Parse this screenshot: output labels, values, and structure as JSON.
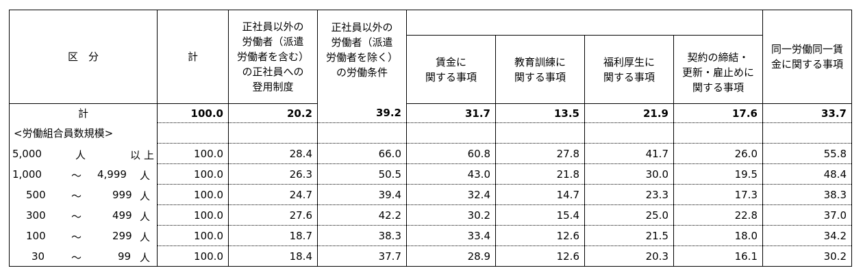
{
  "header": {
    "kubun": "区　分",
    "total": "計",
    "col_a": "正社員以外の\n労働者（派遣\n労働者を含む）\nの正社員への\n登用制度",
    "col_b": "正社員以外の\n労働者（派遣\n労働者を除く）\nの労働条件",
    "col_b1": "賃金に\n関する事項",
    "col_b2": "教育訓練に\n関する事項",
    "col_b3": "福利厚生に\n関する事項",
    "col_b4": "契約の締結・\n更新・雇止めに\n関する事項",
    "col_c": "同一労働同一賃\n金に関する事項"
  },
  "total_row": {
    "label": "計",
    "values": [
      "100.0",
      "20.2",
      "39.2",
      "31.7",
      "13.5",
      "21.9",
      "17.6",
      "33.7"
    ]
  },
  "group_label": "<労働組合員数規模>",
  "rows": [
    {
      "from": "5,000",
      "sep": "人",
      "to": "以",
      "unit": "上",
      "values": [
        "100.0",
        "28.4",
        "66.0",
        "60.8",
        "27.8",
        "41.7",
        "26.0",
        "55.8"
      ]
    },
    {
      "from": "1,000",
      "sep": "～",
      "to": "4,999",
      "unit": "人",
      "values": [
        "100.0",
        "26.3",
        "50.5",
        "43.0",
        "21.8",
        "30.0",
        "19.5",
        "48.4"
      ]
    },
    {
      "from": "500",
      "sep": "～",
      "to": "999",
      "unit": "人",
      "values": [
        "100.0",
        "24.7",
        "39.4",
        "32.4",
        "14.7",
        "23.3",
        "17.3",
        "38.3"
      ]
    },
    {
      "from": "300",
      "sep": "～",
      "to": "499",
      "unit": "人",
      "values": [
        "100.0",
        "27.6",
        "42.2",
        "30.2",
        "15.4",
        "25.0",
        "22.8",
        "37.0"
      ]
    },
    {
      "from": "100",
      "sep": "～",
      "to": "299",
      "unit": "人",
      "values": [
        "100.0",
        "18.7",
        "38.3",
        "33.4",
        "12.6",
        "21.5",
        "18.0",
        "34.2"
      ]
    },
    {
      "from": "30",
      "sep": "～",
      "to": "99",
      "unit": "人",
      "values": [
        "100.0",
        "18.4",
        "37.7",
        "28.9",
        "12.6",
        "20.3",
        "16.1",
        "30.2"
      ]
    }
  ]
}
